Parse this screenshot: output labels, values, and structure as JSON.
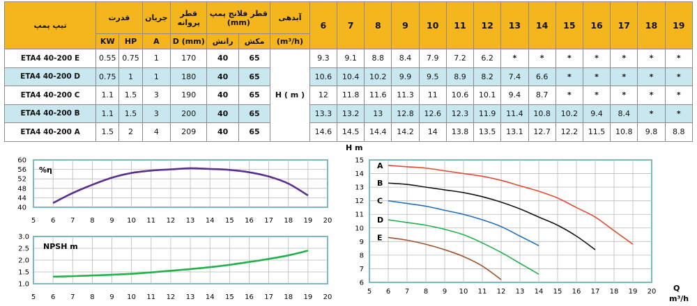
{
  "table": {
    "header": {
      "model": "تیپ پمپ",
      "power": "قدرت",
      "current": "جریان",
      "impeller_dia": "قطر پروانه",
      "flange_dia": "قطر فلانج پمپ (mm)",
      "flow": "آبدهی",
      "kw": "KW",
      "hp": "HP",
      "a": "A",
      "d_mm": "D (mm)",
      "discharge": "رانش",
      "suction": "مکش",
      "flow_unit": "(m³/h)",
      "head_label": "H ( m )",
      "q_values": [
        "6",
        "7",
        "8",
        "9",
        "10",
        "11",
        "12",
        "13",
        "14",
        "15",
        "16",
        "17",
        "18",
        "19"
      ]
    },
    "rows": [
      {
        "model": "ETA4 40-200 E",
        "kw": "0.55",
        "hp": "0.75",
        "a": "1",
        "d": "170",
        "discharge": "40",
        "suction": "65",
        "h": [
          "9.3",
          "9.1",
          "8.8",
          "8.4",
          "7.9",
          "7.2",
          "6.2",
          "*",
          "*",
          "*",
          "*",
          "*",
          "*",
          "*"
        ]
      },
      {
        "model": "ETA4 40-200 D",
        "kw": "0.75",
        "hp": "1",
        "a": "1",
        "d": "180",
        "discharge": "40",
        "suction": "65",
        "h": [
          "10.6",
          "10.4",
          "10.2",
          "9.9",
          "9.5",
          "8.9",
          "8.2",
          "7.4",
          "6.6",
          "*",
          "*",
          "*",
          "*",
          "*"
        ]
      },
      {
        "model": "ETA4 40-200 C",
        "kw": "1.1",
        "hp": "1.5",
        "a": "3",
        "d": "190",
        "discharge": "40",
        "suction": "65",
        "h": [
          "12",
          "11.8",
          "11.6",
          "11.3",
          "11",
          "10.6",
          "10.1",
          "9.4",
          "8.7",
          "*",
          "*",
          "*",
          "*",
          "*"
        ]
      },
      {
        "model": "ETA4 40-200 B",
        "kw": "1.1",
        "hp": "1.5",
        "a": "3",
        "d": "200",
        "discharge": "40",
        "suction": "65",
        "h": [
          "13.3",
          "13.2",
          "13",
          "12.8",
          "12.6",
          "12.3",
          "11.9",
          "11.4",
          "10.8",
          "10.2",
          "9.4",
          "8.4",
          "*",
          "*"
        ]
      },
      {
        "model": "ETA4 40-200 A",
        "kw": "1.5",
        "hp": "2",
        "a": "4",
        "d": "209",
        "discharge": "40",
        "suction": "65",
        "h": [
          "14.6",
          "14.5",
          "14.4",
          "14.2",
          "14",
          "13.8",
          "13.5",
          "13.1",
          "12.7",
          "12.2",
          "11.5",
          "10.8",
          "9.8",
          "8.8"
        ]
      }
    ]
  },
  "colors": {
    "header_bg": "#f5b51c",
    "row_alt": "#c9e7ee",
    "eff_line": "#5b2d8e",
    "npsh_line": "#22b04b",
    "frame": "#7ab8c4",
    "grid": "#b9b9b9"
  },
  "chart_data": [
    {
      "type": "line",
      "title": "",
      "ylabel": "%η",
      "xlabel": "",
      "xlim": [
        5,
        20
      ],
      "ylim": [
        40,
        60
      ],
      "x_ticks": [
        "5",
        "6",
        "7",
        "8",
        "9",
        "10",
        "11",
        "12",
        "13",
        "14",
        "15",
        "16",
        "17",
        "18",
        "19",
        "20"
      ],
      "y_ticks": [
        "40",
        "44",
        "48",
        "52",
        "56",
        "60"
      ],
      "grid": true,
      "series": [
        {
          "color": "#5b2d8e",
          "x": [
            6,
            7,
            8,
            9,
            10,
            11,
            12,
            13,
            14,
            15,
            16,
            17,
            18,
            19
          ],
          "y": [
            41.8,
            46,
            49.5,
            52.5,
            54.5,
            55.5,
            56,
            56.5,
            56.2,
            55.8,
            54.8,
            53,
            50,
            45
          ]
        }
      ]
    },
    {
      "type": "line",
      "title": "",
      "ylabel": "NPSH m",
      "xlabel": "",
      "xlim": [
        5,
        20
      ],
      "ylim": [
        1.0,
        3.0
      ],
      "x_ticks": [
        "5",
        "6",
        "7",
        "8",
        "9",
        "10",
        "11",
        "12",
        "13",
        "14",
        "15",
        "16",
        "17",
        "18",
        "19",
        "20"
      ],
      "y_ticks": [
        "1.0",
        "1.5",
        "2.0",
        "2.5",
        "3.0"
      ],
      "grid": true,
      "series": [
        {
          "color": "#22b04b",
          "x": [
            6,
            7,
            8,
            9,
            10,
            11,
            12,
            13,
            14,
            15,
            16,
            17,
            18,
            19
          ],
          "y": [
            1.3,
            1.32,
            1.35,
            1.38,
            1.42,
            1.48,
            1.55,
            1.62,
            1.7,
            1.8,
            1.92,
            2.05,
            2.2,
            2.4
          ]
        }
      ]
    },
    {
      "type": "line",
      "title": "",
      "ylabel": "H m",
      "xlabel": "Q m³/h",
      "xlim": [
        5,
        20
      ],
      "ylim": [
        6,
        15
      ],
      "x_ticks": [
        "5",
        "6",
        "7",
        "8",
        "9",
        "10",
        "11",
        "12",
        "13",
        "14",
        "15",
        "16",
        "17",
        "18",
        "19",
        "20"
      ],
      "y_ticks": [
        "6",
        "7",
        "8",
        "9",
        "10",
        "11",
        "12",
        "13",
        "14",
        "15"
      ],
      "grid": true,
      "series": [
        {
          "name": "A",
          "color": "#e04a2f",
          "x": [
            6,
            7,
            8,
            9,
            10,
            11,
            12,
            13,
            14,
            15,
            16,
            17,
            18,
            19
          ],
          "y": [
            14.6,
            14.5,
            14.4,
            14.2,
            14,
            13.8,
            13.5,
            13.1,
            12.7,
            12.2,
            11.5,
            10.8,
            9.8,
            8.8
          ]
        },
        {
          "name": "B",
          "color": "#111111",
          "x": [
            6,
            7,
            8,
            9,
            10,
            11,
            12,
            13,
            14,
            15,
            16,
            17
          ],
          "y": [
            13.3,
            13.2,
            13,
            12.8,
            12.6,
            12.3,
            11.9,
            11.4,
            10.8,
            10.2,
            9.4,
            8.4
          ]
        },
        {
          "name": "C",
          "color": "#1f6fb8",
          "x": [
            6,
            7,
            8,
            9,
            10,
            11,
            12,
            13,
            14
          ],
          "y": [
            12,
            11.8,
            11.6,
            11.3,
            11,
            10.6,
            10.1,
            9.4,
            8.7
          ]
        },
        {
          "name": "D",
          "color": "#22b04b",
          "x": [
            6,
            7,
            8,
            9,
            10,
            11,
            12,
            13,
            14
          ],
          "y": [
            10.6,
            10.4,
            10.2,
            9.9,
            9.5,
            8.9,
            8.2,
            7.4,
            6.6
          ]
        },
        {
          "name": "E",
          "color": "#a0522d",
          "x": [
            6,
            7,
            8,
            9,
            10,
            11,
            12
          ],
          "y": [
            9.3,
            9.1,
            8.8,
            8.4,
            7.9,
            7.2,
            6.2
          ]
        }
      ]
    }
  ]
}
